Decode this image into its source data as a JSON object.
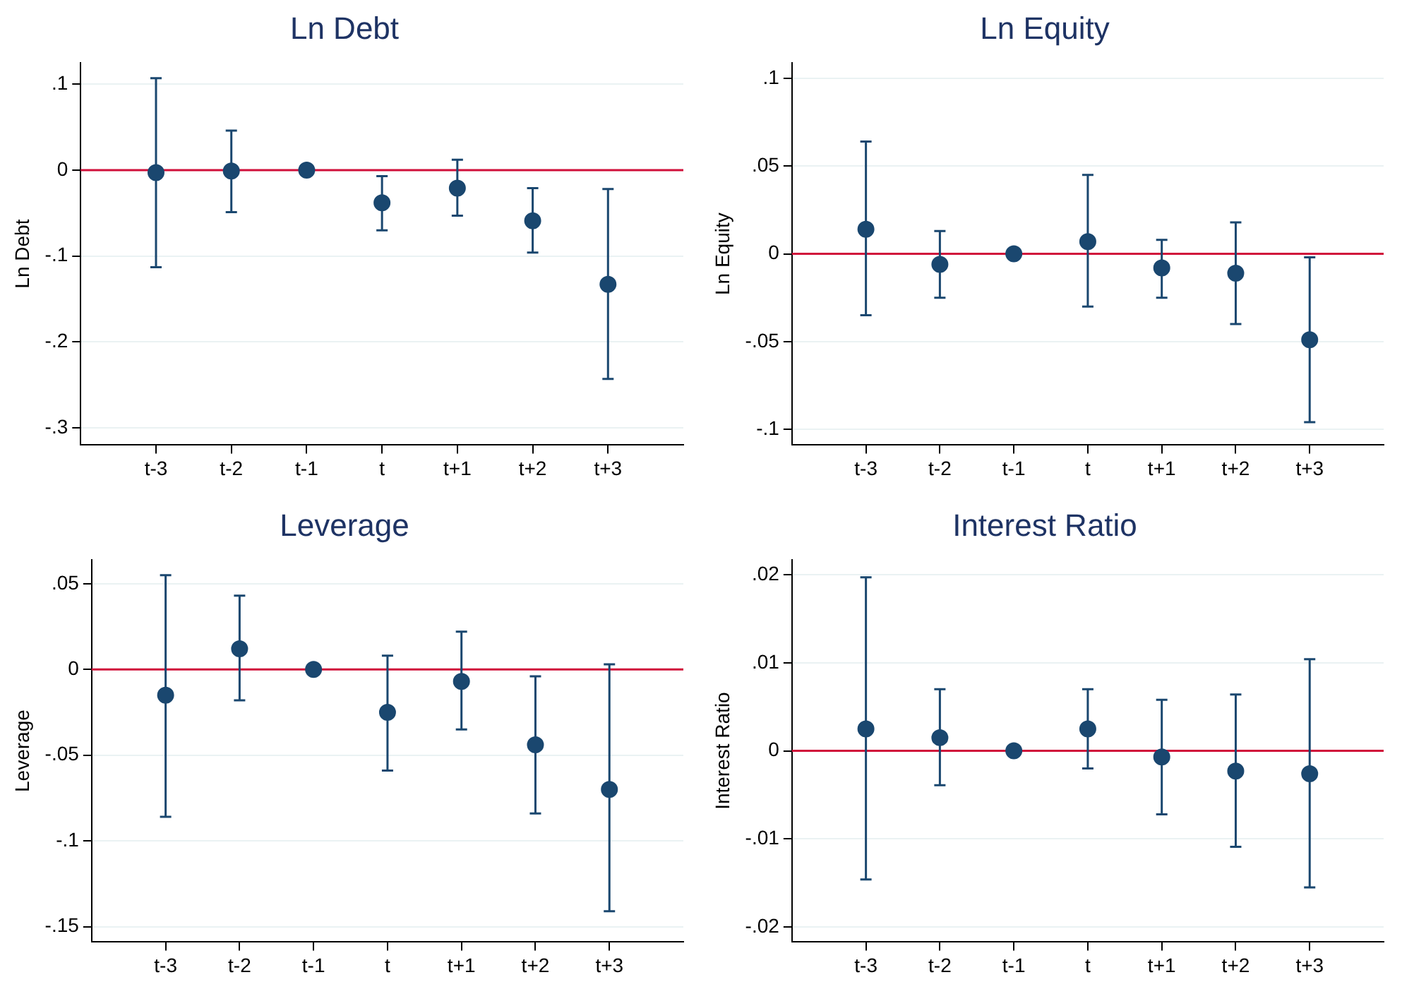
{
  "chart_data": [
    {
      "type": "scatter",
      "title": "Ln Debt",
      "ylabel": "Ln Debt",
      "categories": [
        "t-3",
        "t-2",
        "t-1",
        "t",
        "t+1",
        "t+2",
        "t+3"
      ],
      "color": "#1a476f",
      "marker": "circle",
      "grid": "y",
      "values": [
        -0.003,
        -0.001,
        0,
        -0.038,
        -0.021,
        -0.059,
        -0.133
      ],
      "errors": [
        [
          -0.113,
          0.107
        ],
        [
          -0.049,
          0.046
        ],
        null,
        [
          -0.07,
          -0.007
        ],
        [
          -0.053,
          0.012
        ],
        [
          -0.096,
          -0.021
        ],
        [
          -0.243,
          -0.022
        ]
      ],
      "ylim": [
        -0.32,
        0.125
      ],
      "yticks": [
        {
          "value": -0.3,
          "label": "-.3"
        },
        {
          "value": -0.2,
          "label": "-.2"
        },
        {
          "value": -0.1,
          "label": "-.1"
        },
        {
          "value": 0,
          "label": "0"
        },
        {
          "value": 0.1,
          "label": ".1"
        }
      ],
      "ref_lines": [
        {
          "axis": "y",
          "value": 0,
          "color": "#d0103a"
        }
      ]
    },
    {
      "type": "scatter",
      "title": "Ln Equity",
      "ylabel": "Ln Equity",
      "categories": [
        "t-3",
        "t-2",
        "t-1",
        "t",
        "t+1",
        "t+2",
        "t+3"
      ],
      "color": "#1a476f",
      "marker": "circle",
      "grid": "y",
      "values": [
        0.014,
        -0.006,
        0,
        0.007,
        -0.008,
        -0.011,
        -0.049
      ],
      "errors": [
        [
          -0.035,
          0.064
        ],
        [
          -0.025,
          0.013
        ],
        null,
        [
          -0.03,
          0.045
        ],
        [
          -0.025,
          0.008
        ],
        [
          -0.04,
          0.018
        ],
        [
          -0.096,
          -0.002
        ]
      ],
      "ylim": [
        -0.109,
        0.109
      ],
      "yticks": [
        {
          "value": -0.1,
          "label": "-.1"
        },
        {
          "value": -0.05,
          "label": "-.05"
        },
        {
          "value": 0,
          "label": "0"
        },
        {
          "value": 0.05,
          "label": ".05"
        },
        {
          "value": 0.1,
          "label": ".1"
        }
      ],
      "ref_lines": [
        {
          "axis": "y",
          "value": 0,
          "color": "#d0103a"
        }
      ]
    },
    {
      "type": "scatter",
      "title": "Leverage",
      "ylabel": "Leverage",
      "categories": [
        "t-3",
        "t-2",
        "t-1",
        "t",
        "t+1",
        "t+2",
        "t+3"
      ],
      "color": "#1a476f",
      "marker": "circle",
      "grid": "y",
      "values": [
        -0.015,
        0.012,
        0,
        -0.025,
        -0.007,
        -0.044,
        -0.07
      ],
      "errors": [
        [
          -0.086,
          0.055
        ],
        [
          -0.018,
          0.043
        ],
        null,
        [
          -0.059,
          0.008
        ],
        [
          -0.035,
          0.022
        ],
        [
          -0.084,
          -0.004
        ],
        [
          -0.141,
          0.003
        ]
      ],
      "ylim": [
        -0.159,
        0.064
      ],
      "yticks": [
        {
          "value": -0.15,
          "label": "-.15"
        },
        {
          "value": -0.1,
          "label": "-.1"
        },
        {
          "value": -0.05,
          "label": "-.05"
        },
        {
          "value": 0,
          "label": "0"
        },
        {
          "value": 0.05,
          "label": ".05"
        }
      ],
      "ref_lines": [
        {
          "axis": "y",
          "value": 0,
          "color": "#d0103a"
        }
      ]
    },
    {
      "type": "scatter",
      "title": "Interest Ratio",
      "ylabel": "Interest Ratio",
      "categories": [
        "t-3",
        "t-2",
        "t-1",
        "t",
        "t+1",
        "t+2",
        "t+3"
      ],
      "color": "#1a476f",
      "marker": "circle",
      "grid": "y",
      "values": [
        0.0025,
        0.0015,
        0,
        0.0025,
        -0.0007,
        -0.0023,
        -0.0026
      ],
      "errors": [
        [
          -0.0146,
          0.0197
        ],
        [
          -0.0039,
          0.007
        ],
        null,
        [
          -0.002,
          0.007
        ],
        [
          -0.0072,
          0.0058
        ],
        [
          -0.0109,
          0.0064
        ],
        [
          -0.0155,
          0.0104
        ]
      ],
      "ylim": [
        -0.0217,
        0.0217
      ],
      "yticks": [
        {
          "value": -0.02,
          "label": "-.02"
        },
        {
          "value": -0.01,
          "label": "-.01"
        },
        {
          "value": 0,
          "label": "0"
        },
        {
          "value": 0.01,
          "label": ".01"
        },
        {
          "value": 0.02,
          "label": ".02"
        }
      ],
      "ref_lines": [
        {
          "axis": "y",
          "value": 0,
          "color": "#d0103a"
        }
      ]
    }
  ]
}
